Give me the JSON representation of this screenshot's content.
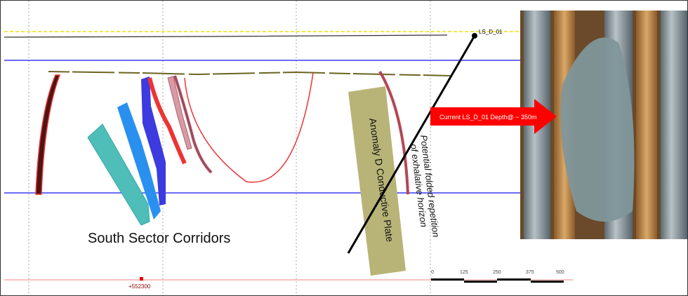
{
  "drillhole": {
    "name": "LS_D_01"
  },
  "arrow_label": "Current LS_D_01 Depth@ ~ 350m",
  "labels": {
    "south_sector": "South Sector Corridors",
    "anomaly": "Anomaly D Conductive Plate",
    "potential_line1": "Potential folded repetition",
    "potential_line2": "of exhalative horizon"
  },
  "easting_label": "+552300",
  "scale_bar": {
    "ticks": [
      "0",
      "125",
      "250",
      "375",
      "500"
    ]
  },
  "colors": {
    "surface_dashed": "#f0e000",
    "reference_lines": "#3a3af5",
    "arrow": "#ff0000",
    "anomaly_plate": "#b8b478",
    "drill_trace": "#000000"
  }
}
